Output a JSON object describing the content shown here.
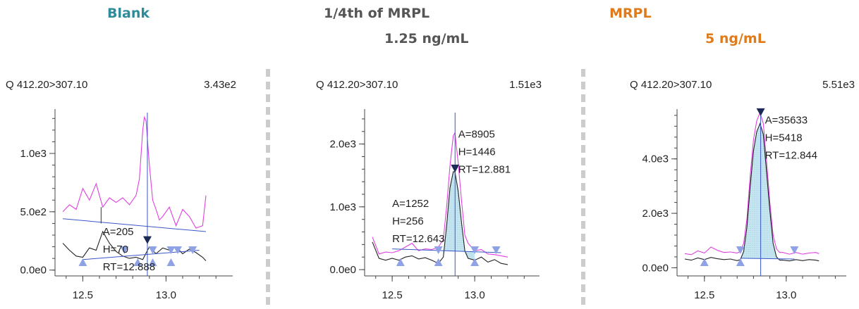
{
  "headers": {
    "blank": "Blank",
    "mid_line1": "1/4th of MRPL",
    "mid_line2": "1.25 ng/mL",
    "mrpl_line1": "MRPL",
    "mrpl_line2": "5 ng/mL"
  },
  "colors": {
    "blank_header": "#2e8b9a",
    "mid_header": "#555555",
    "mrpl_header": "#e07b1b",
    "trace_sample": "#222222",
    "trace_reference": "#e040e0",
    "peak_fill": "#bfe3ef",
    "baseline": "#3a56c8",
    "marker_fill": "#8fa2e6",
    "apex_marker": "#1a2a55",
    "separator": "#cccccc"
  },
  "chart_data": [
    {
      "type": "line",
      "title": "Q 412.20>307.10",
      "max_label": "3.43e2",
      "xlim": [
        12.35,
        13.35
      ],
      "ylim": [
        -50,
        1350
      ],
      "xticks": [
        12.5,
        13.0
      ],
      "xtick_labels": [
        "12.5",
        "13.0"
      ],
      "yticks": [
        0,
        500,
        1000
      ],
      "ytick_labels": [
        "0.0e0",
        "5.0e2",
        "1.0e3"
      ],
      "series": [
        {
          "role": "reference",
          "x": [
            12.38,
            12.42,
            12.46,
            12.5,
            12.54,
            12.58,
            12.62,
            12.66,
            12.7,
            12.74,
            12.78,
            12.82,
            12.84,
            12.86,
            12.87,
            12.88,
            12.9,
            12.92,
            12.94,
            12.96,
            12.98,
            13.02,
            13.06,
            13.1,
            13.14,
            13.18,
            13.22,
            13.24
          ],
          "y": [
            500,
            560,
            520,
            700,
            600,
            740,
            540,
            620,
            580,
            620,
            560,
            640,
            780,
            1200,
            1310,
            1280,
            900,
            600,
            520,
            430,
            460,
            540,
            380,
            520,
            460,
            360,
            380,
            640
          ]
        },
        {
          "role": "sample",
          "x": [
            12.38,
            12.42,
            12.46,
            12.5,
            12.54,
            12.58,
            12.62,
            12.66,
            12.7,
            12.74,
            12.78,
            12.82,
            12.86,
            12.9,
            12.94,
            12.98,
            13.02,
            13.06,
            13.1,
            13.14,
            13.18,
            13.22,
            13.24
          ],
          "y": [
            230,
            170,
            120,
            110,
            190,
            170,
            330,
            230,
            160,
            120,
            100,
            110,
            90,
            200,
            140,
            190,
            170,
            200,
            140,
            180,
            150,
            110,
            80
          ]
        }
      ],
      "baselines": [
        {
          "x": [
            12.38,
            13.24
          ],
          "y": [
            440,
            330
          ]
        },
        {
          "x": [
            12.5,
            13.2
          ],
          "y": [
            90,
            170
          ]
        }
      ],
      "peak": {
        "area": "A=205",
        "height": "H=70",
        "rt": "RT=12.888",
        "apex_x": 12.888,
        "apex_y": 230,
        "label_x": 12.62,
        "label_y": 300,
        "drop_x": 12.61,
        "drop_y_top": 540
      },
      "markers_up": [
        12.5,
        12.83,
        12.92,
        13.03
      ],
      "markers_down": [
        12.75,
        12.92,
        13.03,
        13.07,
        13.16
      ]
    },
    {
      "type": "line",
      "title": "Q 412.20>307.10",
      "max_label": "1.51e3",
      "xlim": [
        12.35,
        13.35
      ],
      "ylim": [
        -100,
        2500
      ],
      "xticks": [
        12.5,
        13.0
      ],
      "xtick_labels": [
        "12.5",
        "13.0"
      ],
      "yticks": [
        0,
        1000,
        2000
      ],
      "ytick_labels": [
        "0.0e0",
        "1.0e3",
        "2.0e3"
      ],
      "series": [
        {
          "role": "reference",
          "x": [
            12.38,
            12.42,
            12.46,
            12.5,
            12.54,
            12.58,
            12.62,
            12.66,
            12.7,
            12.74,
            12.78,
            12.81,
            12.83,
            12.85,
            12.87,
            12.88,
            12.9,
            12.92,
            12.94,
            12.96,
            13.0,
            13.04,
            13.08,
            13.12,
            13.16,
            13.2
          ],
          "y": [
            520,
            250,
            280,
            270,
            300,
            360,
            420,
            300,
            330,
            320,
            360,
            480,
            1000,
            1650,
            2130,
            2180,
            1700,
            1100,
            550,
            420,
            300,
            320,
            250,
            240,
            220,
            200
          ]
        },
        {
          "role": "sample",
          "x": [
            12.38,
            12.42,
            12.46,
            12.5,
            12.54,
            12.58,
            12.62,
            12.66,
            12.7,
            12.74,
            12.78,
            12.81,
            12.83,
            12.85,
            12.87,
            12.88,
            12.9,
            12.92,
            12.94,
            12.96,
            13.0,
            13.04,
            13.08,
            13.12,
            13.16,
            13.2
          ],
          "y": [
            440,
            180,
            150,
            180,
            150,
            200,
            220,
            170,
            190,
            150,
            100,
            200,
            700,
            1300,
            1560,
            1560,
            1250,
            750,
            300,
            180,
            150,
            200,
            120,
            160,
            100,
            80
          ]
        }
      ],
      "baselines": [
        {
          "x": [
            12.5,
            13.16
          ],
          "y": [
            330,
            270
          ]
        }
      ],
      "peak_fill": {
        "x_start": 12.81,
        "x_end": 13.0
      },
      "peak": {
        "area": "A=8905",
        "height": "H=1446",
        "rt": "RT=12.881",
        "apex_x": 12.881,
        "apex_y": 1560,
        "label_x": 12.9,
        "label_y": 2100
      },
      "minor_peak": {
        "area": "A=1252",
        "height": "H=256",
        "rt": "RT=12.643",
        "label_x": 12.5,
        "label_y": 1000
      },
      "markers_up": [
        12.55,
        12.78,
        13.0
      ],
      "markers_down": [
        12.78,
        13.0,
        13.13
      ]
    },
    {
      "type": "line",
      "title": "Q 412.20>307.10",
      "max_label": "5.51e3",
      "xlim": [
        12.35,
        13.35
      ],
      "ylim": [
        -300,
        5700
      ],
      "xticks": [
        12.5,
        13.0
      ],
      "xtick_labels": [
        "12.5",
        "13.0"
      ],
      "yticks": [
        0,
        2000,
        4000
      ],
      "ytick_labels": [
        "0.0e0",
        "2.0e3",
        "4.0e3"
      ],
      "series": [
        {
          "role": "reference",
          "x": [
            12.38,
            12.42,
            12.46,
            12.5,
            12.54,
            12.58,
            12.62,
            12.66,
            12.7,
            12.72,
            12.74,
            12.76,
            12.78,
            12.8,
            12.82,
            12.84,
            12.86,
            12.88,
            12.9,
            12.92,
            12.94,
            12.96,
            12.98,
            13.02,
            13.06,
            13.1,
            13.14,
            13.18,
            13.2
          ],
          "y": [
            520,
            480,
            620,
            540,
            760,
            640,
            560,
            580,
            540,
            600,
            900,
            1800,
            3400,
            4700,
            5400,
            5700,
            5300,
            3900,
            2400,
            1200,
            700,
            560,
            560,
            500,
            560,
            500,
            540,
            560,
            520
          ]
        },
        {
          "role": "sample",
          "x": [
            12.38,
            12.42,
            12.46,
            12.5,
            12.54,
            12.58,
            12.62,
            12.66,
            12.7,
            12.72,
            12.74,
            12.76,
            12.78,
            12.8,
            12.82,
            12.84,
            12.86,
            12.88,
            12.9,
            12.92,
            12.94,
            12.96,
            12.98,
            13.02,
            13.06,
            13.1,
            13.14,
            13.18,
            13.2
          ],
          "y": [
            320,
            280,
            360,
            300,
            380,
            330,
            300,
            320,
            260,
            300,
            600,
            1500,
            3000,
            4300,
            5000,
            5300,
            4900,
            3500,
            2100,
            900,
            400,
            280,
            280,
            250,
            300,
            260,
            300,
            280,
            250
          ]
        }
      ],
      "baselines": [
        {
          "x": [
            12.72,
            13.05
          ],
          "y": [
            350,
            320
          ]
        }
      ],
      "peak_fill": {
        "x_start": 12.72,
        "x_end": 13.0
      },
      "peak": {
        "area": "A=35633",
        "height": "H=5418",
        "rt": "RT=12.844",
        "apex_x": 12.844,
        "apex_y": 5600,
        "label_x": 12.87,
        "label_y": 5300
      },
      "markers_up": [
        12.5,
        12.72
      ],
      "markers_down": [
        12.72,
        13.05
      ]
    }
  ]
}
